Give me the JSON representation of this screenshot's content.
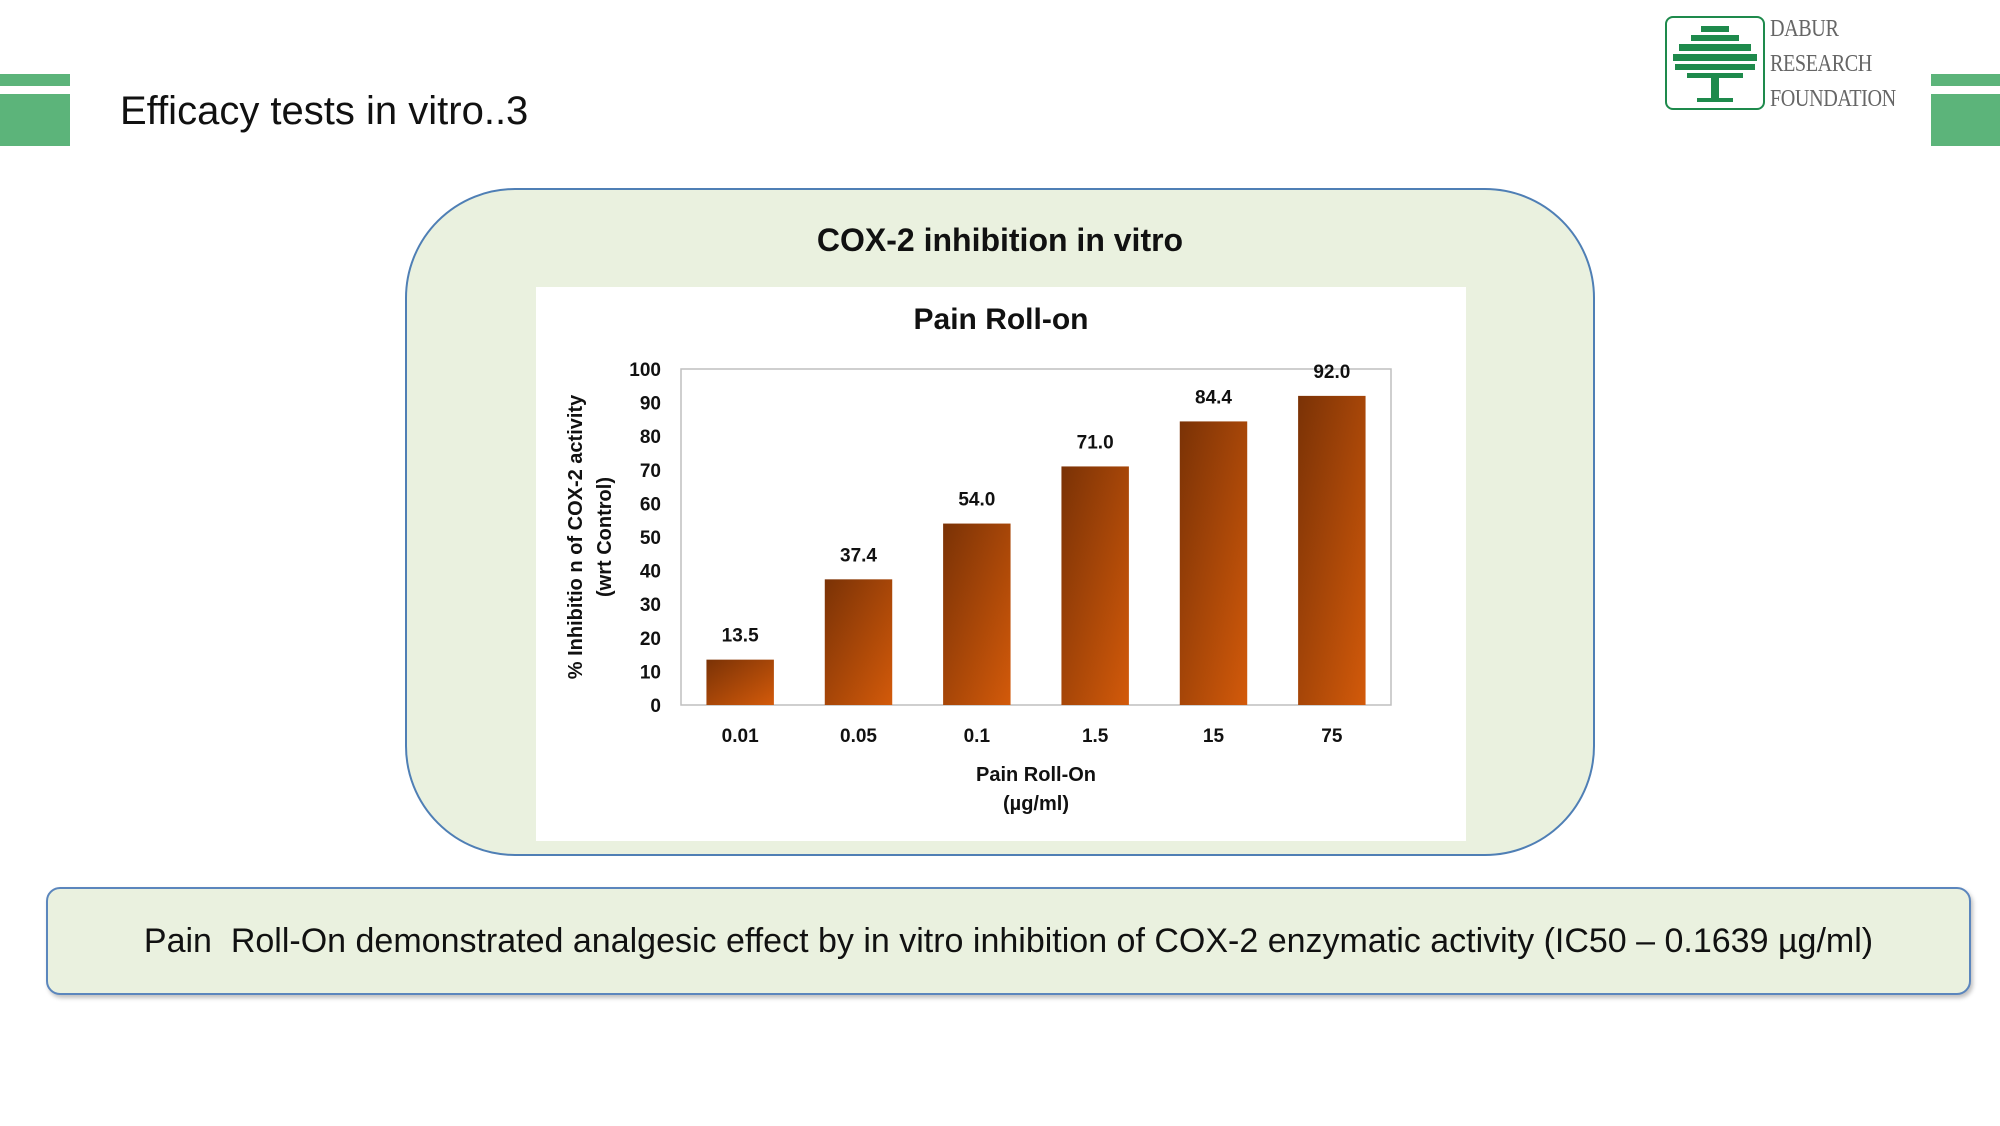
{
  "slide": {
    "title": "Efficacy tests in vitro..3"
  },
  "logo": {
    "line1": "DABUR",
    "line2": "RESEARCH",
    "line3": "FOUNDATION",
    "color": "#1e8a4c"
  },
  "panel": {
    "title": "COX-2 inhibition in vitro"
  },
  "chart_data": {
    "type": "bar",
    "title": "Pain Roll-on",
    "categories": [
      "0.01",
      "0.05",
      "0.1",
      "1.5",
      "15",
      "75"
    ],
    "values": [
      13.5,
      37.4,
      54.0,
      71.0,
      84.4,
      92.0
    ],
    "value_labels": [
      "13.5",
      "37.4",
      "54.0",
      "71.0",
      "84.4",
      "92.0"
    ],
    "ylabel_line1": "% Inhibitio n of COX-2 activity",
    "ylabel_line2": "(wrt Control)",
    "xlabel_line1": "Pain Roll-On",
    "xlabel_line2": "(µg/ml)",
    "yticks": [
      "0",
      "10",
      "20",
      "30",
      "40",
      "50",
      "60",
      "70",
      "80",
      "90",
      "100"
    ],
    "ylim": [
      0,
      100
    ],
    "grid": false,
    "legend": "none",
    "bar_color_dark": "#7a3206",
    "bar_color_light": "#d35a0a"
  },
  "conclusion": {
    "text": "Pain  Roll-On demonstrated analgesic effect by in vitro inhibition of COX-2 enzymatic activity (IC50 – 0.1639 µg/ml)"
  },
  "theme": {
    "accent_green": "#5cb47a",
    "panel_fill": "#eaf1df",
    "panel_border": "#4f7fb5"
  }
}
